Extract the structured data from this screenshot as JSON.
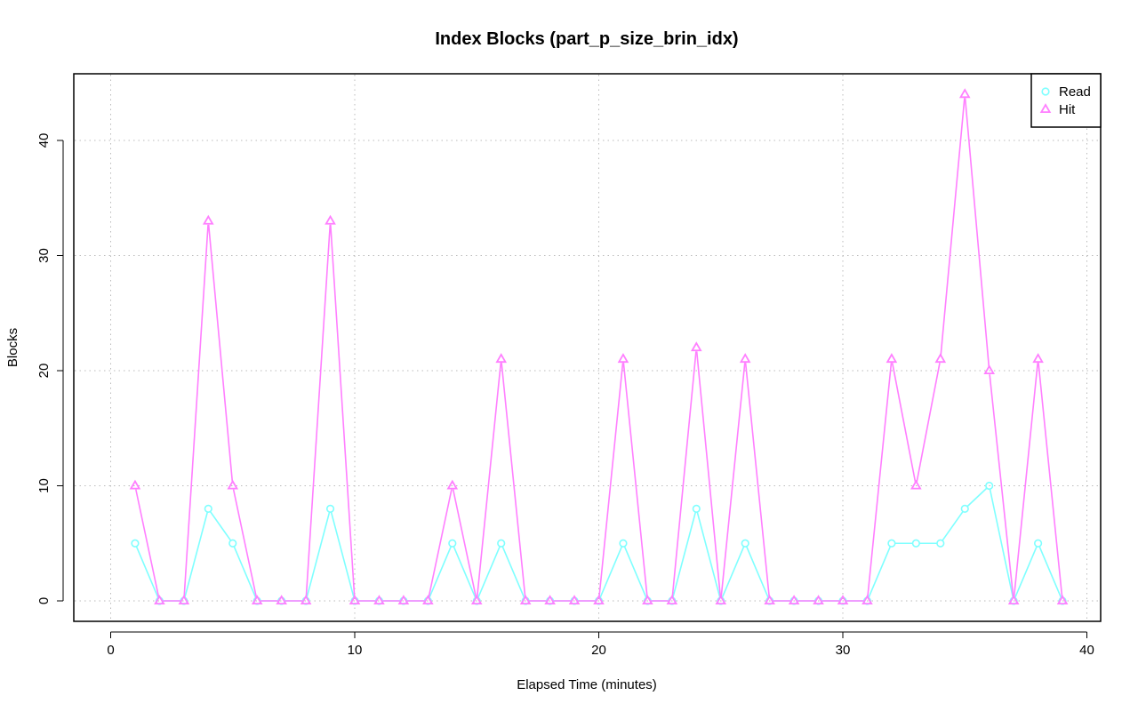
{
  "chart_data": {
    "type": "line",
    "title": "Index Blocks (part_p_size_brin_idx)",
    "xlabel": "Elapsed Time (minutes)",
    "ylabel": "Blocks",
    "xlim": [
      0,
      40
    ],
    "ylim": [
      0,
      44
    ],
    "x_ticks": [
      "0",
      "10",
      "20",
      "30",
      "40"
    ],
    "y_ticks": [
      "0",
      "10",
      "20",
      "30",
      "40"
    ],
    "grid": true,
    "legend_position": "top-right",
    "x": [
      1,
      2,
      3,
      4,
      5,
      6,
      7,
      8,
      9,
      10,
      11,
      12,
      13,
      14,
      15,
      16,
      17,
      18,
      19,
      20,
      21,
      22,
      23,
      24,
      25,
      26,
      27,
      28,
      29,
      30,
      31,
      32,
      33,
      34,
      35,
      36,
      37,
      38,
      39
    ],
    "series": [
      {
        "name": "Read",
        "color": "#7fffff",
        "marker": "circle",
        "values": [
          5,
          0,
          0,
          8,
          5,
          0,
          0,
          0,
          8,
          0,
          0,
          0,
          0,
          5,
          0,
          5,
          0,
          0,
          0,
          0,
          5,
          0,
          0,
          8,
          0,
          5,
          0,
          0,
          0,
          0,
          0,
          5,
          5,
          5,
          8,
          10,
          0,
          5,
          0
        ]
      },
      {
        "name": "Hit",
        "color": "#ff7fff",
        "marker": "triangle",
        "values": [
          10,
          0,
          0,
          33,
          10,
          0,
          0,
          0,
          33,
          0,
          0,
          0,
          0,
          10,
          0,
          21,
          0,
          0,
          0,
          0,
          21,
          0,
          0,
          22,
          0,
          21,
          0,
          0,
          0,
          0,
          0,
          21,
          10,
          21,
          44,
          20,
          0,
          21,
          0
        ]
      }
    ]
  }
}
